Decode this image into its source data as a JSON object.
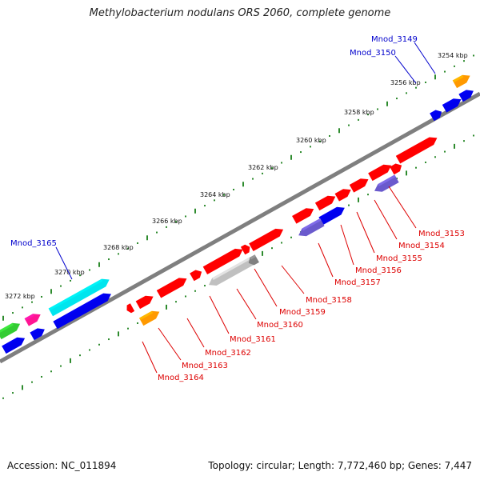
{
  "title": "Methylobacterium nodulans ORS 2060, complete genome",
  "footer": {
    "accession": "Accession: NC_011894",
    "summary": "Topology: circular; Length: 7,772,460 bp; Genes: 7,447"
  },
  "colors": {
    "backbone": "#808080",
    "tick": "#2e8b2e",
    "red_gene": "#ff0000",
    "blue_gene": "#0000ee",
    "purple_gene": "#6a5acd",
    "orange_gene": "#ff9900",
    "cyan_gene": "#00e5ee",
    "green_gene": "#33cc33",
    "magenta_gene": "#ff1493",
    "grey_gene": "#c0c0c0",
    "red_label": "#dd0000",
    "blue_label": "#0000cc"
  },
  "scale_labels": [
    "3254 kbp",
    "3256 kbp",
    "3258 kbp",
    "3260 kbp",
    "3262 kbp",
    "3264 kbp",
    "3266 kbp",
    "3268 kbp",
    "3270 kbp",
    "3272 kbp"
  ],
  "gene_labels": {
    "top": [
      "Mnod_3149",
      "Mnod_3150",
      "Mnod_3165"
    ],
    "bottom": [
      "Mnod_3153",
      "Mnod_3154",
      "Mnod_3155",
      "Mnod_3156",
      "Mnod_3157",
      "Mnod_3158",
      "Mnod_3159",
      "Mnod_3160",
      "Mnod_3161",
      "Mnod_3162",
      "Mnod_3163",
      "Mnod_3164"
    ]
  }
}
